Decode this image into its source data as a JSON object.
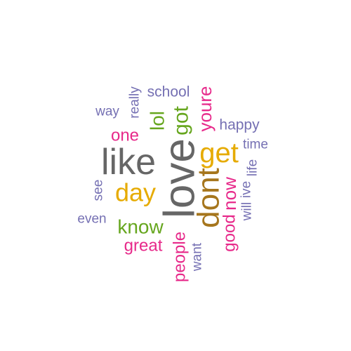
{
  "wordcloud": {
    "colors": {
      "dark-gray": "#666666",
      "gold": "#E6AB02",
      "olive": "#A6761D",
      "magenta": "#E7298A",
      "green": "#66A61E",
      "purple": "#7570B3"
    },
    "words": [
      {
        "text": "love",
        "weight": 1.0,
        "color": "dark-gray",
        "rotated": true
      },
      {
        "text": "like",
        "weight": 0.86,
        "color": "dark-gray",
        "rotated": false
      },
      {
        "text": "dont",
        "weight": 0.74,
        "color": "olive",
        "rotated": true
      },
      {
        "text": "get",
        "weight": 0.7,
        "color": "gold",
        "rotated": false
      },
      {
        "text": "day",
        "weight": 0.62,
        "color": "gold",
        "rotated": false
      },
      {
        "text": "got",
        "weight": 0.52,
        "color": "green",
        "rotated": true
      },
      {
        "text": "know",
        "weight": 0.48,
        "color": "green",
        "rotated": false
      },
      {
        "text": "lol",
        "weight": 0.46,
        "color": "green",
        "rotated": true
      },
      {
        "text": "youre",
        "weight": 0.42,
        "color": "magenta",
        "rotated": true
      },
      {
        "text": "now",
        "weight": 0.42,
        "color": "magenta",
        "rotated": true
      },
      {
        "text": "one",
        "weight": 0.38,
        "color": "magenta",
        "rotated": false
      },
      {
        "text": "great",
        "weight": 0.38,
        "color": "magenta",
        "rotated": false
      },
      {
        "text": "people",
        "weight": 0.38,
        "color": "magenta",
        "rotated": true
      },
      {
        "text": "good",
        "weight": 0.38,
        "color": "magenta",
        "rotated": true
      },
      {
        "text": "school",
        "weight": 0.34,
        "color": "purple",
        "rotated": false
      },
      {
        "text": "happy",
        "weight": 0.34,
        "color": "purple",
        "rotated": false
      },
      {
        "text": "way",
        "weight": 0.3,
        "color": "purple",
        "rotated": false
      },
      {
        "text": "time",
        "weight": 0.3,
        "color": "purple",
        "rotated": false
      },
      {
        "text": "really",
        "weight": 0.3,
        "color": "purple",
        "rotated": true
      },
      {
        "text": "see",
        "weight": 0.3,
        "color": "purple",
        "rotated": true
      },
      {
        "text": "even",
        "weight": 0.3,
        "color": "purple",
        "rotated": false
      },
      {
        "text": "want",
        "weight": 0.3,
        "color": "purple",
        "rotated": true
      },
      {
        "text": "will",
        "weight": 0.3,
        "color": "purple",
        "rotated": true
      },
      {
        "text": "ive",
        "weight": 0.3,
        "color": "purple",
        "rotated": true
      },
      {
        "text": "life",
        "weight": 0.3,
        "color": "purple",
        "rotated": true
      }
    ]
  }
}
